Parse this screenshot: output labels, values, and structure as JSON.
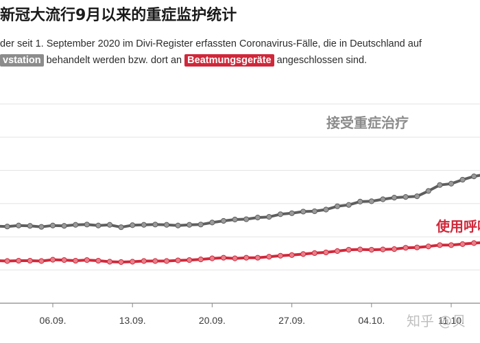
{
  "title": "新冠大流行9月以来的重症监护统计",
  "subtitle": {
    "line1": "der seit 1. September 2020 im Divi-Register erfassten Coronavirus-Fälle, die in Deutschland auf",
    "tag1": "vstation",
    "line2_mid": " behandelt werden bzw. dort an ",
    "tag2": "Beatmungsgeräte",
    "line2_end": " angeschlossen sind."
  },
  "colors": {
    "icu": "#5e5e5e",
    "icu_marker": "#9a9a9a",
    "vent": "#d0283a",
    "vent_marker": "#e8808b",
    "grid": "#e3e3e3"
  },
  "watermark": "知乎 @贝",
  "chart_data": {
    "type": "line",
    "x": [
      "09-01",
      "09-02",
      "09-03",
      "09-04",
      "09-05",
      "09-06",
      "09-07",
      "09-08",
      "09-09",
      "09-10",
      "09-11",
      "09-12",
      "09-13",
      "09-14",
      "09-15",
      "09-16",
      "09-17",
      "09-18",
      "09-19",
      "09-20",
      "09-21",
      "09-22",
      "09-23",
      "09-24",
      "09-25",
      "09-26",
      "09-27",
      "09-28",
      "09-29",
      "09-30",
      "10-01",
      "10-02",
      "10-03",
      "10-04",
      "10-05",
      "10-06",
      "10-07",
      "10-08",
      "10-09",
      "10-10",
      "10-11",
      "10-12",
      "10-13",
      "10-14",
      "10-15"
    ],
    "x_tick_labels": [
      "06.09.",
      "13.09.",
      "20.09.",
      "27.09.",
      "04.10.",
      "11.10."
    ],
    "x_tick_values": [
      "09-06",
      "09-13",
      "09-20",
      "09-27",
      "10-04",
      "10-11"
    ],
    "ylim": [
      0,
      700
    ],
    "gridlines": [
      100,
      200,
      300,
      400,
      500,
      600
    ],
    "series": [
      {
        "name": "接受重症治疗",
        "values": [
          232,
          231,
          234,
          233,
          230,
          234,
          233,
          236,
          237,
          234,
          236,
          229,
          235,
          236,
          237,
          236,
          234,
          236,
          237,
          243,
          248,
          252,
          253,
          258,
          260,
          268,
          271,
          276,
          277,
          282,
          292,
          296,
          306,
          307,
          313,
          318,
          320,
          322,
          338,
          356,
          360,
          372,
          382,
          388,
          415
        ]
      },
      {
        "name": "使用呼吸机",
        "values": [
          128,
          127,
          128,
          128,
          127,
          131,
          130,
          128,
          130,
          128,
          125,
          124,
          125,
          127,
          127,
          127,
          129,
          130,
          132,
          135,
          137,
          135,
          137,
          137,
          140,
          143,
          145,
          148,
          151,
          153,
          157,
          161,
          162,
          161,
          162,
          163,
          167,
          168,
          171,
          175,
          175,
          178,
          181,
          183,
          190
        ]
      }
    ]
  }
}
